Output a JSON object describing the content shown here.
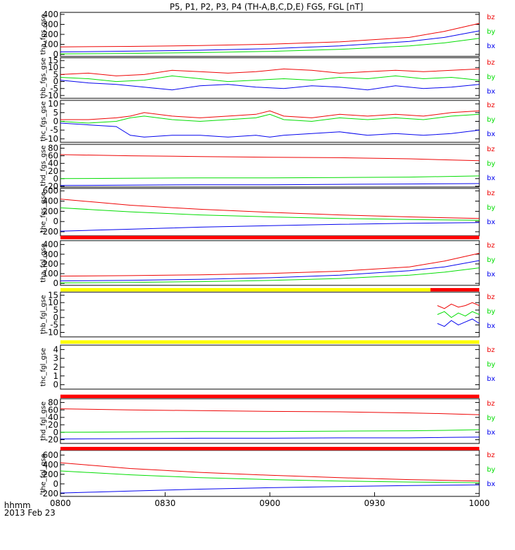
{
  "title": "P5, P1, P2, P3, P4 (TH-A,B,C,D,E) FGS, FGL [nT]",
  "colors": {
    "bx": "#0000ee",
    "by": "#00dd00",
    "bz": "#ee0000",
    "bar_red": "#ff0000",
    "bar_yellow": "#ffff00",
    "axis": "#000000"
  },
  "legend": [
    "bz",
    "by",
    "bx"
  ],
  "x_axis": {
    "ticks": [
      "0800",
      "0830",
      "0900",
      "0930",
      "1000"
    ],
    "tick_minutes": [
      0,
      30,
      60,
      90,
      120
    ],
    "xlim_minutes": [
      0,
      120
    ],
    "label_line1": "hhmm",
    "label_line2": "2013 Feb 23"
  },
  "chart_data": [
    {
      "type": "line",
      "ylabel": "tha_fgs_gse",
      "ylim": [
        -20,
        420
      ],
      "yticks": [
        "0",
        "100",
        "200",
        "300",
        "400"
      ],
      "ytick_values": [
        0,
        100,
        200,
        300,
        400
      ],
      "x_minutes": [
        0,
        20,
        40,
        60,
        80,
        100,
        110,
        120
      ],
      "series": [
        {
          "name": "bz",
          "values": [
            75,
            80,
            88,
            102,
            125,
            170,
            230,
            310
          ]
        },
        {
          "name": "by",
          "values": [
            5,
            10,
            18,
            30,
            50,
            85,
            115,
            160
          ]
        },
        {
          "name": "bx",
          "values": [
            25,
            32,
            42,
            58,
            85,
            130,
            170,
            235
          ]
        }
      ]
    },
    {
      "type": "line",
      "ylabel": "thb_fgs_gse",
      "ylim": [
        -12,
        17
      ],
      "yticks": [
        "-10",
        "-5",
        "0",
        "5",
        "10",
        "15"
      ],
      "ytick_values": [
        -10,
        -5,
        0,
        5,
        10,
        15
      ],
      "x_minutes": [
        0,
        8,
        16,
        24,
        32,
        40,
        48,
        56,
        64,
        72,
        80,
        88,
        96,
        104,
        112,
        120
      ],
      "series": [
        {
          "name": "bz",
          "values": [
            5,
            6,
            4,
            5,
            8,
            7,
            6,
            7,
            9,
            8,
            6,
            7,
            8,
            7,
            8,
            9
          ]
        },
        {
          "name": "by",
          "values": [
            3,
            2,
            0,
            1,
            4,
            2,
            0,
            1,
            2,
            1,
            3,
            2,
            4,
            2,
            3,
            1
          ]
        },
        {
          "name": "bx",
          "values": [
            1,
            -1,
            -2,
            -4,
            -6,
            -3,
            -2,
            -4,
            -5,
            -3,
            -4,
            -6,
            -3,
            -5,
            -4,
            -2
          ]
        }
      ]
    },
    {
      "type": "line",
      "ylabel": "thc_fgs_gse",
      "ylim": [
        -12,
        12
      ],
      "yticks": [
        "-10",
        "-5",
        "0",
        "5",
        "10"
      ],
      "ytick_values": [
        -10,
        -5,
        0,
        5,
        10
      ],
      "x_minutes": [
        0,
        8,
        16,
        20,
        24,
        32,
        40,
        48,
        56,
        60,
        64,
        72,
        80,
        88,
        96,
        104,
        112,
        120
      ],
      "series": [
        {
          "name": "bz",
          "values": [
            1,
            1,
            2,
            3,
            5,
            3,
            2,
            3,
            4,
            6,
            3,
            2,
            4,
            3,
            4,
            3,
            5,
            6
          ]
        },
        {
          "name": "by",
          "values": [
            0,
            -1,
            0,
            2,
            3,
            1,
            0,
            1,
            2,
            4,
            1,
            0,
            2,
            1,
            2,
            1,
            3,
            4
          ]
        },
        {
          "name": "bx",
          "values": [
            -1,
            -2,
            -3,
            -8,
            -9,
            -8,
            -8,
            -9,
            -8,
            -9,
            -8,
            -7,
            -6,
            -8,
            -7,
            -8,
            -7,
            -5
          ]
        }
      ]
    },
    {
      "type": "line",
      "ylabel": "thd_fgs_gse",
      "ylim": [
        -22,
        90
      ],
      "yticks": [
        "-20",
        "0",
        "20",
        "40",
        "60",
        "80"
      ],
      "ytick_values": [
        -20,
        0,
        20,
        40,
        60,
        80
      ],
      "x_minutes": [
        0,
        20,
        40,
        60,
        80,
        100,
        120
      ],
      "series": [
        {
          "name": "bz",
          "values": [
            63,
            60,
            58,
            56,
            55,
            52,
            47
          ]
        },
        {
          "name": "by",
          "values": [
            0,
            1,
            2,
            2,
            3,
            4,
            7
          ]
        },
        {
          "name": "bx",
          "values": [
            -18,
            -17,
            -16,
            -16,
            -15,
            -14,
            -13
          ]
        }
      ]
    },
    {
      "type": "line",
      "ylabel": "the_fgs_gse",
      "ylim": [
        -280,
        650
      ],
      "yticks": [
        "-200",
        "0",
        "200",
        "400",
        "600"
      ],
      "ytick_values": [
        -200,
        0,
        200,
        400,
        600
      ],
      "x_minutes": [
        0,
        10,
        20,
        30,
        40,
        60,
        80,
        100,
        120
      ],
      "series": [
        {
          "name": "bz",
          "values": [
            440,
            380,
            320,
            280,
            240,
            180,
            130,
            90,
            60
          ]
        },
        {
          "name": "by",
          "values": [
            270,
            230,
            190,
            160,
            130,
            90,
            60,
            40,
            25
          ]
        },
        {
          "name": "bx",
          "values": [
            -190,
            -170,
            -150,
            -130,
            -110,
            -80,
            -55,
            -35,
            -20
          ]
        }
      ]
    },
    {
      "type": "line",
      "ylabel": "tha_fgl_gse",
      "ylim": [
        -20,
        440
      ],
      "yticks": [
        "0",
        "100",
        "200",
        "300",
        "400"
      ],
      "ytick_values": [
        0,
        100,
        200,
        300,
        400
      ],
      "x_minutes": [
        0,
        20,
        40,
        60,
        80,
        100,
        110,
        120
      ],
      "series": [
        {
          "name": "bz",
          "values": [
            75,
            80,
            88,
            102,
            125,
            170,
            230,
            310
          ]
        },
        {
          "name": "by",
          "values": [
            5,
            10,
            18,
            30,
            50,
            85,
            115,
            160
          ]
        },
        {
          "name": "bx",
          "values": [
            25,
            32,
            42,
            58,
            85,
            130,
            170,
            235
          ]
        }
      ]
    },
    {
      "type": "line",
      "ylabel": "thb_fgl_gse",
      "ylim": [
        -13,
        17
      ],
      "yticks": [
        "-10",
        "-5",
        "0",
        "5",
        "10",
        "15"
      ],
      "ytick_values": [
        -10,
        -5,
        0,
        5,
        10,
        15
      ],
      "x_minutes": [
        108,
        110,
        112,
        114,
        116,
        118,
        120
      ],
      "series": [
        {
          "name": "bz",
          "values": [
            8,
            6,
            9,
            7,
            8,
            10,
            8
          ]
        },
        {
          "name": "by",
          "values": [
            2,
            4,
            0,
            3,
            1,
            4,
            2
          ]
        },
        {
          "name": "bx",
          "values": [
            -4,
            -6,
            -2,
            -5,
            -3,
            -1,
            -4
          ]
        }
      ]
    },
    {
      "type": "line",
      "ylabel": "thc_fgl_gse",
      "ylim": [
        -0.5,
        4.5
      ],
      "yticks": [
        "0",
        "1",
        "2",
        "3",
        "4"
      ],
      "ytick_values": [
        0,
        1,
        2,
        3,
        4
      ],
      "x_minutes": [],
      "series": []
    },
    {
      "type": "line",
      "ylabel": "thd_fgl_gse",
      "ylim": [
        -30,
        90
      ],
      "yticks": [
        "-20",
        "0",
        "20",
        "40",
        "60",
        "80"
      ],
      "ytick_values": [
        -20,
        0,
        20,
        40,
        60,
        80
      ],
      "x_minutes": [
        0,
        20,
        40,
        60,
        80,
        100,
        110,
        120
      ],
      "series": [
        {
          "name": "bz",
          "values": [
            63,
            60,
            58,
            56,
            55,
            52,
            50,
            47
          ]
        },
        {
          "name": "by",
          "values": [
            0,
            1,
            2,
            2,
            3,
            4,
            5,
            7
          ]
        },
        {
          "name": "bx",
          "values": [
            -18,
            -17,
            -16,
            -16,
            -15,
            -15,
            -14,
            -13
          ]
        }
      ]
    },
    {
      "type": "line",
      "ylabel": "the_fgl_gse",
      "ylim": [
        -260,
        700
      ],
      "yticks": [
        "-200",
        "0",
        "200",
        "400",
        "600"
      ],
      "ytick_values": [
        -200,
        0,
        200,
        400,
        600
      ],
      "x_minutes": [
        0,
        10,
        20,
        30,
        40,
        60,
        80,
        100,
        120
      ],
      "series": [
        {
          "name": "bz",
          "values": [
            440,
            380,
            320,
            280,
            240,
            180,
            130,
            90,
            60
          ]
        },
        {
          "name": "by",
          "values": [
            270,
            230,
            190,
            160,
            130,
            90,
            60,
            40,
            25
          ]
        },
        {
          "name": "bx",
          "values": [
            -190,
            -170,
            -150,
            -130,
            -110,
            -80,
            -55,
            -35,
            -20
          ]
        }
      ]
    }
  ],
  "status_bars": [
    {
      "after_panel": 4,
      "segments": [
        {
          "from": 0,
          "to": 120,
          "color": "bar_red"
        }
      ]
    },
    {
      "after_panel": 5,
      "segments": [
        {
          "from": 0,
          "to": 106,
          "color": "bar_yellow"
        },
        {
          "from": 106,
          "to": 120,
          "color": "bar_red"
        }
      ]
    },
    {
      "after_panel": 6,
      "segments": [
        {
          "from": 0,
          "to": 120,
          "color": "bar_yellow"
        }
      ]
    },
    {
      "after_panel": 7,
      "segments": [
        {
          "from": 0,
          "to": 120,
          "color": "bar_red"
        }
      ]
    },
    {
      "after_panel": 8,
      "segments": [
        {
          "from": 0,
          "to": 120,
          "color": "bar_red"
        }
      ]
    }
  ]
}
